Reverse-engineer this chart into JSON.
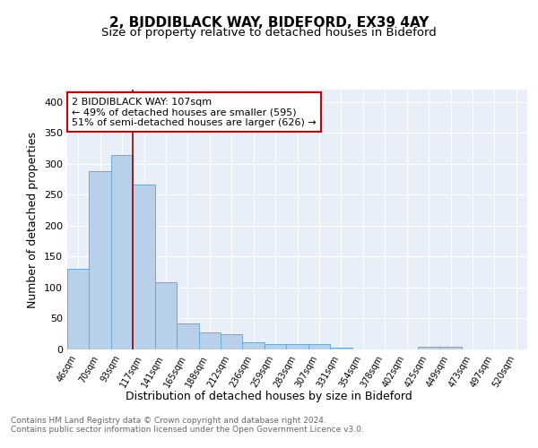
{
  "title1": "2, BIDDIBLACK WAY, BIDEFORD, EX39 4AY",
  "title2": "Size of property relative to detached houses in Bideford",
  "xlabel": "Distribution of detached houses by size in Bideford",
  "ylabel": "Number of detached properties",
  "categories": [
    "46sqm",
    "70sqm",
    "93sqm",
    "117sqm",
    "141sqm",
    "165sqm",
    "188sqm",
    "212sqm",
    "236sqm",
    "259sqm",
    "283sqm",
    "307sqm",
    "331sqm",
    "354sqm",
    "378sqm",
    "402sqm",
    "425sqm",
    "449sqm",
    "473sqm",
    "497sqm",
    "520sqm"
  ],
  "values": [
    130,
    288,
    315,
    267,
    108,
    42,
    27,
    25,
    12,
    9,
    8,
    8,
    3,
    0,
    0,
    0,
    5,
    5,
    0,
    0,
    0
  ],
  "bar_color": "#b8d0ea",
  "bar_edge_color": "#6aaad4",
  "vline_x": 2.5,
  "annotation_text": "2 BIDDIBLACK WAY: 107sqm\n← 49% of detached houses are smaller (595)\n51% of semi-detached houses are larger (626) →",
  "annotation_box_color": "#ffffff",
  "annotation_box_edge_color": "#cc0000",
  "vline_color": "#990000",
  "ylim": [
    0,
    420
  ],
  "yticks": [
    0,
    50,
    100,
    150,
    200,
    250,
    300,
    350,
    400
  ],
  "background_color": "#e8eff8",
  "footer_text": "Contains HM Land Registry data © Crown copyright and database right 2024.\nContains public sector information licensed under the Open Government Licence v3.0.",
  "title1_fontsize": 11,
  "title2_fontsize": 9.5,
  "xlabel_fontsize": 9,
  "ylabel_fontsize": 9,
  "annotation_fontsize": 8,
  "footer_fontsize": 6.5
}
